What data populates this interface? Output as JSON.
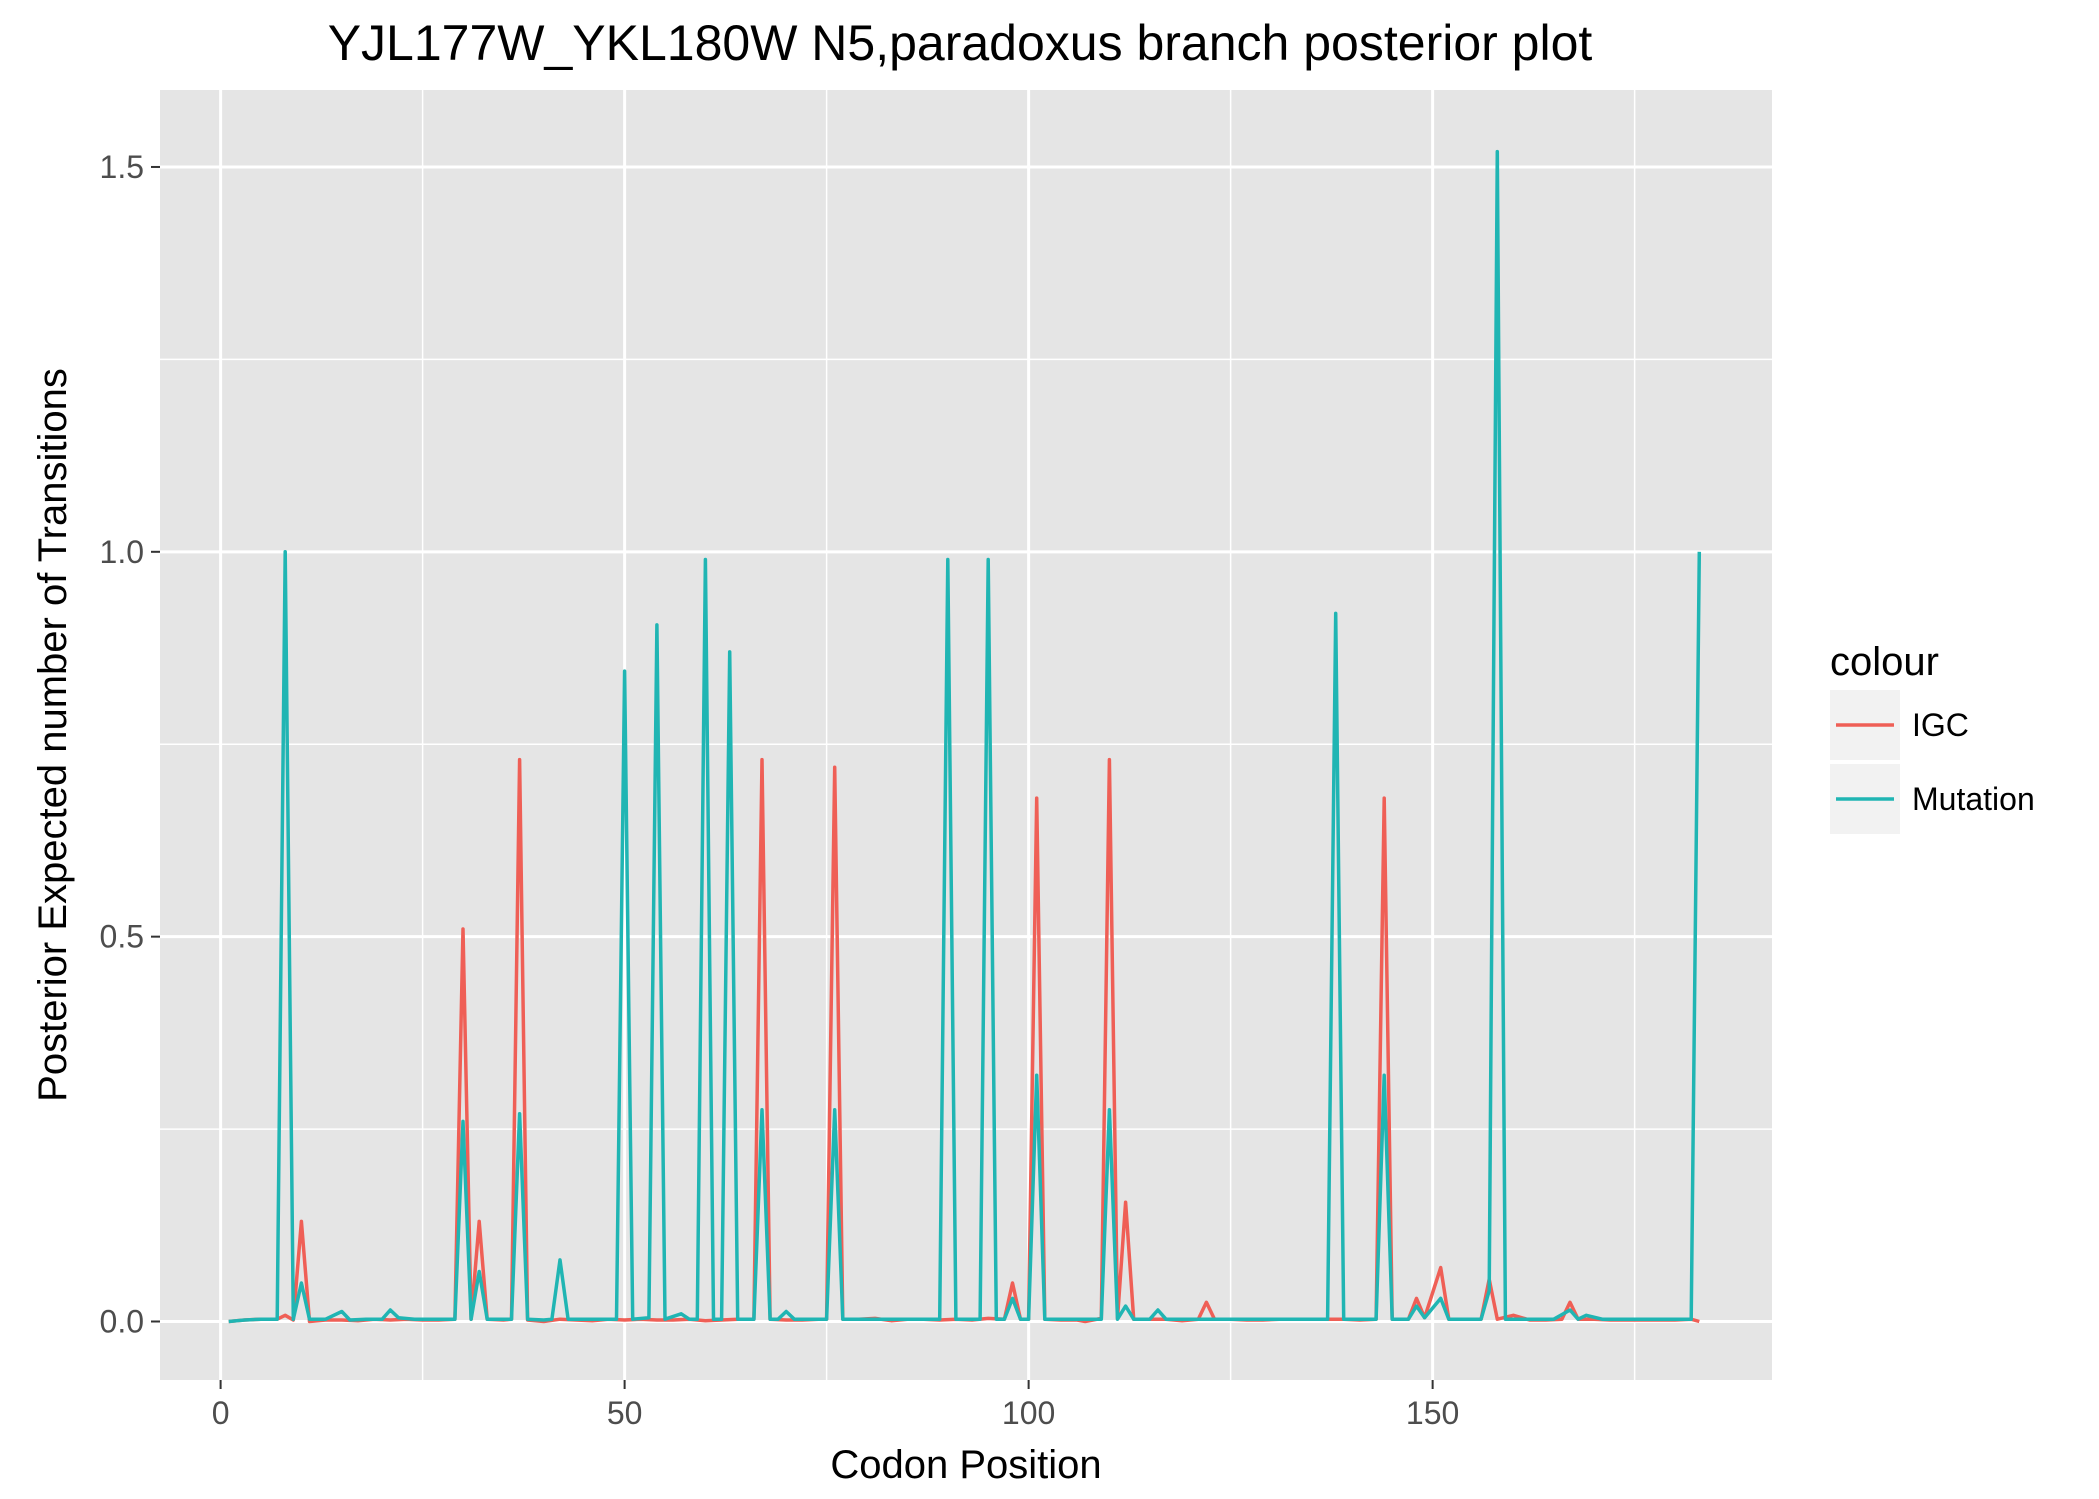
{
  "chart_data": {
    "type": "line",
    "title": "YJL177W_YKL180W N5,paradoxus branch posterior plot",
    "xlabel": "Codon Position",
    "ylabel": "Posterior Expected number of Transitions",
    "xlim": [
      -7.5,
      192
    ],
    "ylim": [
      -0.076,
      1.6
    ],
    "x_ticks": [
      0,
      50,
      100,
      150
    ],
    "x_tick_labels": [
      "0",
      "50",
      "100",
      "150"
    ],
    "y_ticks": [
      0.0,
      0.5,
      1.0,
      1.5
    ],
    "y_tick_labels": [
      "0.0",
      "0.5",
      "1.0",
      "1.5"
    ],
    "grid": true,
    "legend": {
      "title": "colour",
      "placement": "right",
      "entries": [
        "IGC",
        "Mutation"
      ]
    },
    "colors": {
      "panel_background": "#e5e5e5",
      "grid_line": "#ffffff",
      "IGC": "#ef5f56",
      "Mutation": "#20b5b3"
    },
    "series": [
      {
        "name": "IGC",
        "points": [
          [
            1,
            0.0
          ],
          [
            3,
            0.002
          ],
          [
            5,
            0.003
          ],
          [
            7,
            0.003
          ],
          [
            8,
            0.008
          ],
          [
            9,
            0.002
          ],
          [
            10,
            0.13
          ],
          [
            11,
            0.0
          ],
          [
            13,
            0.002
          ],
          [
            15,
            0.002
          ],
          [
            17,
            0.001
          ],
          [
            19,
            0.003
          ],
          [
            21,
            0.002
          ],
          [
            23,
            0.003
          ],
          [
            25,
            0.002
          ],
          [
            27,
            0.002
          ],
          [
            29,
            0.003
          ],
          [
            30,
            0.51
          ],
          [
            31,
            0.003
          ],
          [
            32,
            0.13
          ],
          [
            33,
            0.003
          ],
          [
            35,
            0.002
          ],
          [
            36,
            0.003
          ],
          [
            37,
            0.73
          ],
          [
            38,
            0.002
          ],
          [
            40,
            0.0
          ],
          [
            42,
            0.003
          ],
          [
            44,
            0.002
          ],
          [
            46,
            0.001
          ],
          [
            48,
            0.003
          ],
          [
            50,
            0.002
          ],
          [
            52,
            0.003
          ],
          [
            54,
            0.002
          ],
          [
            56,
            0.002
          ],
          [
            58,
            0.003
          ],
          [
            60,
            0.001
          ],
          [
            62,
            0.002
          ],
          [
            64,
            0.003
          ],
          [
            66,
            0.003
          ],
          [
            67,
            0.73
          ],
          [
            68,
            0.003
          ],
          [
            70,
            0.002
          ],
          [
            72,
            0.002
          ],
          [
            74,
            0.003
          ],
          [
            75,
            0.003
          ],
          [
            76,
            0.72
          ],
          [
            77,
            0.003
          ],
          [
            79,
            0.003
          ],
          [
            81,
            0.004
          ],
          [
            83,
            0.001
          ],
          [
            85,
            0.003
          ],
          [
            87,
            0.003
          ],
          [
            89,
            0.002
          ],
          [
            91,
            0.003
          ],
          [
            93,
            0.002
          ],
          [
            95,
            0.004
          ],
          [
            97,
            0.003
          ],
          [
            98,
            0.05
          ],
          [
            99,
            0.003
          ],
          [
            100,
            0.003
          ],
          [
            101,
            0.68
          ],
          [
            102,
            0.003
          ],
          [
            104,
            0.002
          ],
          [
            106,
            0.002
          ],
          [
            107,
            0.0
          ],
          [
            109,
            0.004
          ],
          [
            110,
            0.73
          ],
          [
            111,
            0.004
          ],
          [
            112,
            0.155
          ],
          [
            113,
            0.003
          ],
          [
            115,
            0.003
          ],
          [
            117,
            0.003
          ],
          [
            119,
            0.001
          ],
          [
            121,
            0.003
          ],
          [
            122,
            0.025
          ],
          [
            123,
            0.003
          ],
          [
            125,
            0.003
          ],
          [
            127,
            0.002
          ],
          [
            129,
            0.002
          ],
          [
            131,
            0.003
          ],
          [
            133,
            0.003
          ],
          [
            135,
            0.003
          ],
          [
            137,
            0.003
          ],
          [
            139,
            0.003
          ],
          [
            141,
            0.002
          ],
          [
            143,
            0.003
          ],
          [
            144,
            0.68
          ],
          [
            145,
            0.003
          ],
          [
            147,
            0.003
          ],
          [
            148,
            0.03
          ],
          [
            149,
            0.005
          ],
          [
            151,
            0.07
          ],
          [
            152,
            0.003
          ],
          [
            154,
            0.003
          ],
          [
            156,
            0.003
          ],
          [
            157,
            0.055
          ],
          [
            158,
            0.003
          ],
          [
            160,
            0.008
          ],
          [
            162,
            0.002
          ],
          [
            164,
            0.002
          ],
          [
            166,
            0.003
          ],
          [
            167,
            0.025
          ],
          [
            168,
            0.003
          ],
          [
            170,
            0.003
          ],
          [
            172,
            0.002
          ],
          [
            174,
            0.002
          ],
          [
            176,
            0.002
          ],
          [
            178,
            0.002
          ],
          [
            180,
            0.002
          ],
          [
            182,
            0.003
          ],
          [
            183,
            0.0
          ]
        ]
      },
      {
        "name": "Mutation",
        "points": [
          [
            1,
            0.0
          ],
          [
            3,
            0.002
          ],
          [
            5,
            0.003
          ],
          [
            7,
            0.003
          ],
          [
            8,
            1.0
          ],
          [
            9,
            0.003
          ],
          [
            10,
            0.05
          ],
          [
            11,
            0.003
          ],
          [
            13,
            0.003
          ],
          [
            15,
            0.013
          ],
          [
            16,
            0.002
          ],
          [
            18,
            0.003
          ],
          [
            20,
            0.003
          ],
          [
            21,
            0.015
          ],
          [
            22,
            0.005
          ],
          [
            24,
            0.003
          ],
          [
            26,
            0.003
          ],
          [
            29,
            0.003
          ],
          [
            30,
            0.26
          ],
          [
            31,
            0.003
          ],
          [
            32,
            0.065
          ],
          [
            33,
            0.003
          ],
          [
            35,
            0.003
          ],
          [
            36,
            0.003
          ],
          [
            37,
            0.27
          ],
          [
            38,
            0.003
          ],
          [
            40,
            0.002
          ],
          [
            41,
            0.003
          ],
          [
            42,
            0.08
          ],
          [
            43,
            0.003
          ],
          [
            45,
            0.003
          ],
          [
            48,
            0.003
          ],
          [
            49,
            0.003
          ],
          [
            50,
            0.845
          ],
          [
            51,
            0.003
          ],
          [
            53,
            0.005
          ],
          [
            54,
            0.905
          ],
          [
            55,
            0.003
          ],
          [
            57,
            0.01
          ],
          [
            58,
            0.003
          ],
          [
            59,
            0.003
          ],
          [
            60,
            0.99
          ],
          [
            61,
            0.003
          ],
          [
            62,
            0.003
          ],
          [
            63,
            0.87
          ],
          [
            64,
            0.003
          ],
          [
            66,
            0.003
          ],
          [
            67,
            0.275
          ],
          [
            68,
            0.003
          ],
          [
            69,
            0.003
          ],
          [
            70,
            0.013
          ],
          [
            71,
            0.003
          ],
          [
            73,
            0.003
          ],
          [
            75,
            0.003
          ],
          [
            76,
            0.275
          ],
          [
            77,
            0.003
          ],
          [
            79,
            0.003
          ],
          [
            81,
            0.003
          ],
          [
            83,
            0.003
          ],
          [
            85,
            0.003
          ],
          [
            87,
            0.003
          ],
          [
            89,
            0.003
          ],
          [
            90,
            0.99
          ],
          [
            91,
            0.003
          ],
          [
            93,
            0.003
          ],
          [
            94,
            0.003
          ],
          [
            95,
            0.99
          ],
          [
            96,
            0.003
          ],
          [
            97,
            0.003
          ],
          [
            98,
            0.03
          ],
          [
            99,
            0.003
          ],
          [
            100,
            0.003
          ],
          [
            101,
            0.32
          ],
          [
            102,
            0.003
          ],
          [
            104,
            0.003
          ],
          [
            106,
            0.003
          ],
          [
            108,
            0.003
          ],
          [
            109,
            0.003
          ],
          [
            110,
            0.275
          ],
          [
            111,
            0.003
          ],
          [
            112,
            0.02
          ],
          [
            113,
            0.003
          ],
          [
            115,
            0.003
          ],
          [
            116,
            0.015
          ],
          [
            117,
            0.003
          ],
          [
            119,
            0.003
          ],
          [
            121,
            0.003
          ],
          [
            123,
            0.003
          ],
          [
            125,
            0.003
          ],
          [
            127,
            0.003
          ],
          [
            130,
            0.003
          ],
          [
            133,
            0.003
          ],
          [
            135,
            0.003
          ],
          [
            136,
            0.003
          ],
          [
            137,
            0.003
          ],
          [
            138,
            0.92
          ],
          [
            139,
            0.003
          ],
          [
            141,
            0.003
          ],
          [
            143,
            0.003
          ],
          [
            144,
            0.32
          ],
          [
            145,
            0.003
          ],
          [
            147,
            0.003
          ],
          [
            148,
            0.02
          ],
          [
            149,
            0.005
          ],
          [
            151,
            0.03
          ],
          [
            152,
            0.003
          ],
          [
            154,
            0.003
          ],
          [
            156,
            0.003
          ],
          [
            157,
            0.04
          ],
          [
            158,
            1.52
          ],
          [
            159,
            0.003
          ],
          [
            161,
            0.003
          ],
          [
            163,
            0.003
          ],
          [
            165,
            0.003
          ],
          [
            167,
            0.015
          ],
          [
            168,
            0.003
          ],
          [
            169,
            0.008
          ],
          [
            171,
            0.003
          ],
          [
            173,
            0.003
          ],
          [
            175,
            0.003
          ],
          [
            177,
            0.003
          ],
          [
            179,
            0.003
          ],
          [
            181,
            0.003
          ],
          [
            182,
            0.003
          ],
          [
            183,
            1.0
          ]
        ]
      }
    ]
  }
}
